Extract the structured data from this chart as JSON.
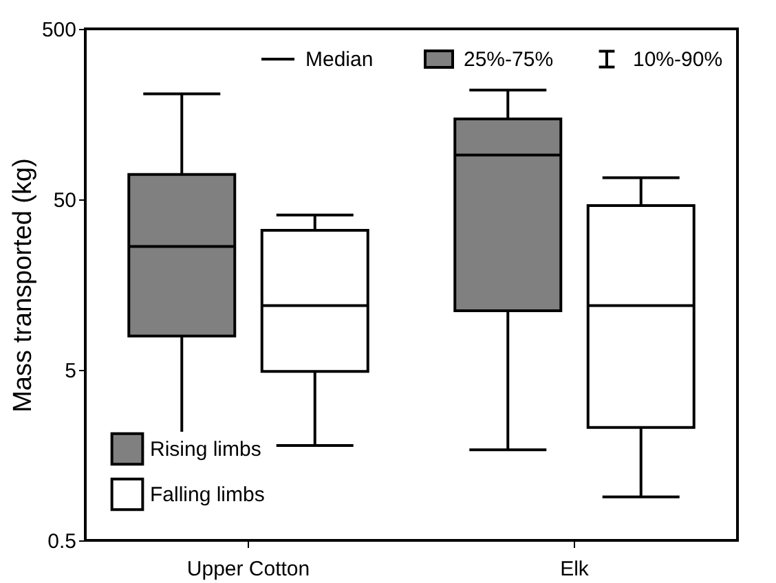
{
  "chart_data": {
    "type": "box",
    "ylabel": "Mass transported (kg)",
    "categories": [
      "Upper Cotton",
      "Elk"
    ],
    "series": [
      {
        "name": "Rising limbs",
        "color": "#808080",
        "boxes": [
          {
            "low": 1.5,
            "q1": 7.9,
            "median": 26.5,
            "q3": 70,
            "high": 208
          },
          {
            "low": 1.7,
            "q1": 11.1,
            "median": 91,
            "q3": 148,
            "high": 219
          }
        ]
      },
      {
        "name": "Falling limbs",
        "color": "#ffffff",
        "boxes": [
          {
            "low": 1.8,
            "q1": 4.9,
            "median": 11.9,
            "q3": 32.9,
            "high": 40.5
          },
          {
            "low": 0.9,
            "q1": 2.3,
            "median": 11.9,
            "q3": 46,
            "high": 67
          }
        ]
      }
    ],
    "ylim": [
      0.5,
      500
    ],
    "yticks": [
      0.5,
      5,
      50,
      500
    ],
    "log": true,
    "grid": false,
    "legend": "bottom left",
    "annotations": [
      "Median",
      "25%-75%",
      "10%-90%"
    ]
  }
}
